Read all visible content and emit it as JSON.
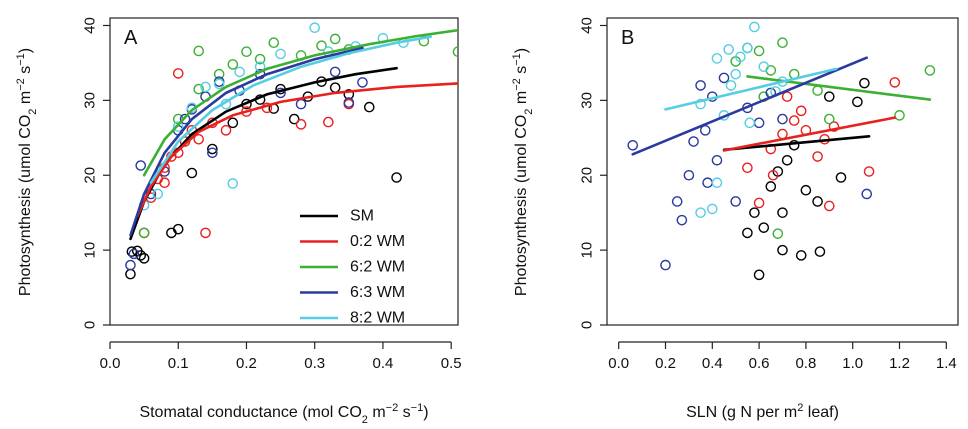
{
  "figure": {
    "ylabel": "Photosynthesis (umol CO",
    "ylabel_sub": "2",
    "ylabel_mid": " m",
    "ylabel_sup1": "−2",
    "ylabel_mid2": " s",
    "ylabel_sup2": "−1",
    "ylabel_end": ")"
  },
  "chart_data": [
    {
      "type": "scatter",
      "panel_label": "A",
      "xlabel": "Stomatal conductance (mol CO",
      "xlabel_sub": "2",
      "xlabel_mid": " m",
      "xlabel_sup1": "−2",
      "xlabel_mid2": " s",
      "xlabel_sup2": "−1",
      "xlabel_end": ")",
      "xlim": [
        0.0,
        0.51
      ],
      "ylim": [
        0,
        41
      ],
      "xticks": [
        "0.0",
        "0.1",
        "0.2",
        "0.3",
        "0.4",
        "0.5"
      ],
      "xtick_values": [
        0.0,
        0.1,
        0.2,
        0.3,
        0.4,
        0.5
      ],
      "yticks": [
        "0",
        "10",
        "20",
        "30",
        "40"
      ],
      "ytick_values": [
        0,
        10,
        20,
        30,
        40
      ],
      "legend_position": "bottom-right",
      "series": [
        {
          "name": "SM",
          "color": "#000000",
          "fit": [
            [
              0.03,
              11.5
            ],
            [
              0.05,
              16.5
            ],
            [
              0.08,
              21.5
            ],
            [
              0.12,
              25.5
            ],
            [
              0.17,
              28.5
            ],
            [
              0.23,
              30.8
            ],
            [
              0.3,
              32.4
            ],
            [
              0.36,
              33.5
            ],
            [
              0.42,
              34.3
            ]
          ],
          "points": [
            [
              0.03,
              6.8
            ],
            [
              0.032,
              9.8
            ],
            [
              0.04,
              9.9
            ],
            [
              0.045,
              9.3
            ],
            [
              0.05,
              8.9
            ],
            [
              0.09,
              12.3
            ],
            [
              0.1,
              12.8
            ],
            [
              0.12,
              20.3
            ],
            [
              0.15,
              23.5
            ],
            [
              0.18,
              27
            ],
            [
              0.2,
              29.5
            ],
            [
              0.25,
              31.5
            ],
            [
              0.27,
              27.5
            ],
            [
              0.29,
              30.5
            ],
            [
              0.31,
              32.5
            ],
            [
              0.33,
              31.7
            ],
            [
              0.35,
              30.8
            ],
            [
              0.38,
              29.1
            ],
            [
              0.42,
              19.7
            ],
            [
              0.22,
              30.1
            ],
            [
              0.24,
              28.9
            ]
          ]
        },
        {
          "name": "0:2 WM",
          "color": "#e8201e",
          "fit": [
            [
              0.04,
              14.5
            ],
            [
              0.06,
              18.5
            ],
            [
              0.09,
              22.5
            ],
            [
              0.13,
              25.8
            ],
            [
              0.18,
              28
            ],
            [
              0.25,
              29.8
            ],
            [
              0.33,
              31
            ],
            [
              0.42,
              31.8
            ],
            [
              0.52,
              32.3
            ]
          ],
          "points": [
            [
              0.05,
              12.3
            ],
            [
              0.06,
              17
            ],
            [
              0.07,
              19.5
            ],
            [
              0.08,
              21
            ],
            [
              0.09,
              22.5
            ],
            [
              0.1,
              23
            ],
            [
              0.1,
              33.6
            ],
            [
              0.11,
              24.5
            ],
            [
              0.12,
              26
            ],
            [
              0.14,
              12.3
            ],
            [
              0.15,
              27
            ],
            [
              0.17,
              26
            ],
            [
              0.2,
              28.5
            ],
            [
              0.23,
              29
            ],
            [
              0.28,
              26.8
            ],
            [
              0.32,
              27.1
            ],
            [
              0.35,
              29.5
            ],
            [
              0.13,
              24.8
            ],
            [
              0.08,
              19
            ]
          ]
        },
        {
          "name": "6:2 WM",
          "color": "#3cb033",
          "fit": [
            [
              0.05,
              20
            ],
            [
              0.08,
              24.8
            ],
            [
              0.12,
              28.7
            ],
            [
              0.17,
              31.8
            ],
            [
              0.23,
              34.2
            ],
            [
              0.3,
              36
            ],
            [
              0.38,
              37.5
            ],
            [
              0.45,
              38.6
            ],
            [
              0.52,
              39.5
            ]
          ],
          "points": [
            [
              0.05,
              12.3
            ],
            [
              0.1,
              27.5
            ],
            [
              0.13,
              31.5
            ],
            [
              0.13,
              36.6
            ],
            [
              0.16,
              33.5
            ],
            [
              0.2,
              36.5
            ],
            [
              0.22,
              35.5
            ],
            [
              0.24,
              37.7
            ],
            [
              0.28,
              36
            ],
            [
              0.31,
              37.3
            ],
            [
              0.33,
              38.2
            ],
            [
              0.35,
              36.8
            ],
            [
              0.46,
              37.9
            ],
            [
              0.51,
              36.5
            ],
            [
              0.18,
              34.8
            ]
          ]
        },
        {
          "name": "6:3 WM",
          "color": "#2b3a9e",
          "fit": [
            [
              0.03,
              12
            ],
            [
              0.05,
              17.5
            ],
            [
              0.08,
              23
            ],
            [
              0.12,
              27.5
            ],
            [
              0.17,
              31
            ],
            [
              0.23,
              33.5
            ],
            [
              0.3,
              35.5
            ],
            [
              0.37,
              37
            ]
          ],
          "points": [
            [
              0.03,
              8
            ],
            [
              0.035,
              9.5
            ],
            [
              0.045,
              21.3
            ],
            [
              0.06,
              17.5
            ],
            [
              0.08,
              20.5
            ],
            [
              0.1,
              26
            ],
            [
              0.12,
              28.8
            ],
            [
              0.14,
              30.5
            ],
            [
              0.16,
              32.5
            ],
            [
              0.19,
              31.3
            ],
            [
              0.22,
              33.5
            ],
            [
              0.25,
              31
            ],
            [
              0.28,
              29.5
            ],
            [
              0.33,
              33.8
            ],
            [
              0.35,
              29.7
            ],
            [
              0.37,
              32.4
            ],
            [
              0.15,
              23
            ],
            [
              0.11,
              27.5
            ]
          ]
        },
        {
          "name": "8:2 WM",
          "color": "#55cde3",
          "fit": [
            [
              0.06,
              19
            ],
            [
              0.1,
              24.5
            ],
            [
              0.15,
              28.7
            ],
            [
              0.21,
              32
            ],
            [
              0.28,
              34.5
            ],
            [
              0.35,
              36.3
            ],
            [
              0.42,
              37.7
            ],
            [
              0.47,
              38.5
            ]
          ],
          "points": [
            [
              0.05,
              16
            ],
            [
              0.07,
              17.5
            ],
            [
              0.1,
              26.5
            ],
            [
              0.12,
              29
            ],
            [
              0.14,
              31.8
            ],
            [
              0.16,
              32.2
            ],
            [
              0.18,
              18.9
            ],
            [
              0.19,
              33.8
            ],
            [
              0.22,
              34.5
            ],
            [
              0.25,
              36.2
            ],
            [
              0.3,
              39.7
            ],
            [
              0.32,
              36.5
            ],
            [
              0.36,
              37.2
            ],
            [
              0.4,
              38.3
            ],
            [
              0.43,
              37.7
            ],
            [
              0.17,
              29.5
            ]
          ]
        }
      ]
    },
    {
      "type": "scatter",
      "panel_label": "B",
      "xlabel": "SLN (g N per m",
      "xlabel_sup": "2",
      "xlabel_end": " leaf)",
      "xlim": [
        -0.05,
        1.45
      ],
      "ylim": [
        0,
        41
      ],
      "xticks": [
        "0.0",
        "0.2",
        "0.4",
        "0.6",
        "0.8",
        "1.0",
        "1.2",
        "1.4"
      ],
      "xtick_values": [
        0.0,
        0.2,
        0.4,
        0.6,
        0.8,
        1.0,
        1.2,
        1.4
      ],
      "yticks": [
        "0",
        "10",
        "20",
        "30",
        "40"
      ],
      "ytick_values": [
        0,
        10,
        20,
        30,
        40
      ],
      "series": [
        {
          "name": "SM",
          "color": "#000000",
          "fit": [
            [
              0.45,
              23.4
            ],
            [
              1.07,
              25.2
            ]
          ],
          "points": [
            [
              0.6,
              6.7
            ],
            [
              0.55,
              12.3
            ],
            [
              0.62,
              13
            ],
            [
              0.7,
              10
            ],
            [
              0.78,
              9.3
            ],
            [
              0.86,
              9.8
            ],
            [
              0.65,
              18.5
            ],
            [
              0.72,
              22
            ],
            [
              0.8,
              18
            ],
            [
              0.85,
              16.5
            ],
            [
              0.95,
              19.7
            ],
            [
              1.05,
              32.3
            ],
            [
              0.58,
              15
            ],
            [
              0.68,
              20.5
            ],
            [
              0.75,
              24
            ],
            [
              0.9,
              30.5
            ],
            [
              1.02,
              29.8
            ],
            [
              0.7,
              15
            ]
          ]
        },
        {
          "name": "0:2 WM",
          "color": "#e8201e",
          "fit": [
            [
              0.45,
              23.3
            ],
            [
              1.18,
              27.7
            ]
          ],
          "points": [
            [
              0.6,
              16.3
            ],
            [
              0.66,
              20
            ],
            [
              0.7,
              25.5
            ],
            [
              0.75,
              27.3
            ],
            [
              0.8,
              26
            ],
            [
              0.85,
              22.5
            ],
            [
              0.9,
              15.9
            ],
            [
              0.92,
              26.5
            ],
            [
              1.07,
              20.5
            ],
            [
              1.18,
              32.4
            ],
            [
              0.72,
              30.5
            ],
            [
              0.65,
              23.5
            ],
            [
              0.78,
              28.6
            ],
            [
              0.88,
              24.8
            ],
            [
              0.55,
              21
            ]
          ]
        },
        {
          "name": "6:2 WM",
          "color": "#3cb033",
          "fit": [
            [
              0.55,
              33.2
            ],
            [
              1.33,
              30.1
            ]
          ],
          "points": [
            [
              0.55,
              37
            ],
            [
              0.6,
              36.6
            ],
            [
              0.65,
              34
            ],
            [
              0.68,
              12.2
            ],
            [
              0.7,
              37.7
            ],
            [
              0.75,
              33.5
            ],
            [
              0.62,
              30.5
            ],
            [
              0.85,
              31.3
            ],
            [
              0.9,
              27.5
            ],
            [
              1.2,
              28
            ],
            [
              1.33,
              34
            ],
            [
              0.5,
              35.2
            ]
          ]
        },
        {
          "name": "6:3 WM",
          "color": "#2b3a9e",
          "fit": [
            [
              0.06,
              22.8
            ],
            [
              1.06,
              35.7
            ]
          ],
          "points": [
            [
              0.06,
              24
            ],
            [
              0.2,
              8
            ],
            [
              0.25,
              16.5
            ],
            [
              0.27,
              14
            ],
            [
              0.3,
              20
            ],
            [
              0.32,
              24.5
            ],
            [
              0.35,
              32
            ],
            [
              0.37,
              26
            ],
            [
              0.4,
              30.5
            ],
            [
              0.42,
              22
            ],
            [
              0.45,
              33
            ],
            [
              0.5,
              16.5
            ],
            [
              0.55,
              29
            ],
            [
              0.6,
              27
            ],
            [
              0.65,
              31
            ],
            [
              0.7,
              27.5
            ],
            [
              1.06,
              17.5
            ],
            [
              0.38,
              19
            ]
          ]
        },
        {
          "name": "8:2 WM",
          "color": "#55cde3",
          "fit": [
            [
              0.2,
              28.8
            ],
            [
              0.93,
              34.2
            ]
          ],
          "points": [
            [
              0.35,
              15
            ],
            [
              0.4,
              15.5
            ],
            [
              0.42,
              19
            ],
            [
              0.45,
              28
            ],
            [
              0.48,
              32
            ],
            [
              0.5,
              33.5
            ],
            [
              0.52,
              35.8
            ],
            [
              0.55,
              37
            ],
            [
              0.58,
              39.8
            ],
            [
              0.62,
              34.5
            ],
            [
              0.67,
              31.2
            ],
            [
              0.7,
              32.5
            ],
            [
              0.42,
              35.6
            ],
            [
              0.35,
              29.5
            ],
            [
              0.56,
              27
            ],
            [
              0.47,
              36.8
            ]
          ]
        }
      ]
    }
  ]
}
